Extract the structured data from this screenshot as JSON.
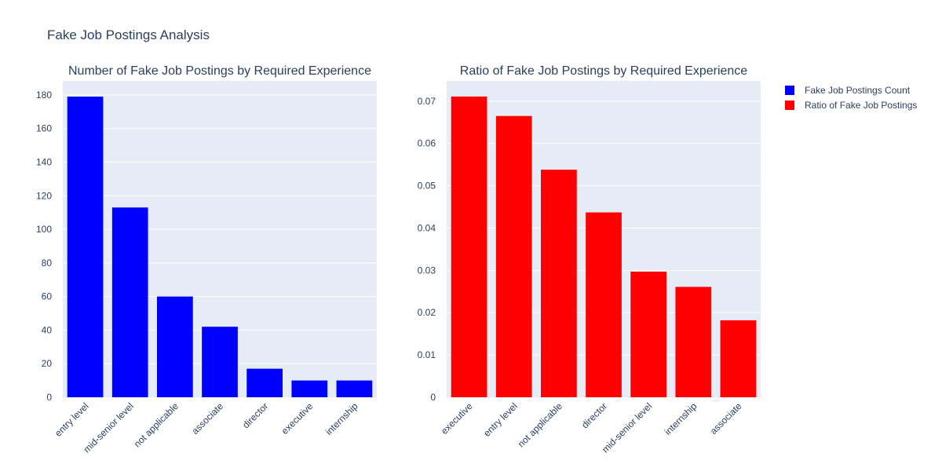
{
  "figure_title": "Fake Job Postings Analysis",
  "legend": {
    "placement": "top-right",
    "items": [
      {
        "label": "Fake Job Postings Count",
        "color": "#0000ff"
      },
      {
        "label": "Ratio of Fake Job Postings",
        "color": "#ff0000"
      }
    ]
  },
  "chart_data": [
    {
      "type": "bar",
      "title": "Number of Fake Job Postings by Required Experience",
      "xlabel": "",
      "ylabel": "",
      "categories": [
        "entry level",
        "mid-senior level",
        "not applicable",
        "associate",
        "director",
        "executive",
        "internship"
      ],
      "series": [
        {
          "name": "Fake Job Postings Count",
          "color": "#0000ff",
          "values": [
            179,
            113,
            60,
            42,
            17,
            10,
            10
          ]
        }
      ],
      "ylim": [
        0,
        188.4
      ],
      "yticks": [
        0,
        20,
        40,
        60,
        80,
        100,
        120,
        140,
        160,
        180
      ],
      "ytick_labels": [
        "0",
        "20",
        "40",
        "60",
        "80",
        "100",
        "120",
        "140",
        "160",
        "180"
      ],
      "grid": true
    },
    {
      "type": "bar",
      "title": "Ratio of Fake Job Postings by Required Experience",
      "xlabel": "",
      "ylabel": "",
      "categories": [
        "executive",
        "entry level",
        "not applicable",
        "director",
        "mid-senior level",
        "internship",
        "associate"
      ],
      "series": [
        {
          "name": "Ratio of Fake Job Postings",
          "color": "#ff0000",
          "values": [
            0.0711,
            0.0665,
            0.0538,
            0.0437,
            0.0297,
            0.0261,
            0.0182
          ]
        }
      ],
      "ylim": [
        0,
        0.0748
      ],
      "yticks": [
        0,
        0.01,
        0.02,
        0.03,
        0.04,
        0.05,
        0.06,
        0.07
      ],
      "ytick_labels": [
        "0",
        "0.01",
        "0.02",
        "0.03",
        "0.04",
        "0.05",
        "0.06",
        "0.07"
      ],
      "grid": true
    }
  ]
}
